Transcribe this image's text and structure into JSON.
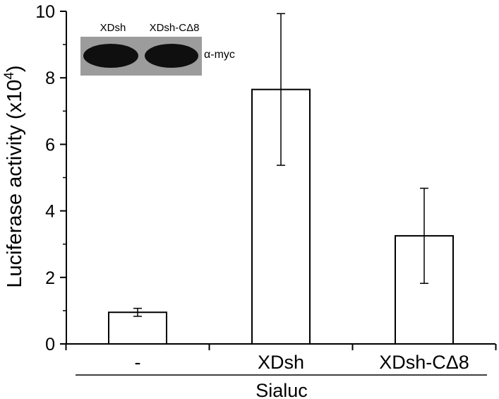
{
  "chart_data": {
    "type": "bar",
    "categories": [
      "-",
      "XDsh",
      "XDsh-CΔ8"
    ],
    "values": [
      0.95,
      7.65,
      3.25
    ],
    "error": [
      0.12,
      2.28,
      1.43
    ],
    "ylabel_main": "Luciferase activity (x10",
    "ylabel_exp": "4",
    "ylabel_close": ")",
    "group_label": "Sialuc",
    "ylim": [
      0,
      10
    ],
    "yticks": [
      0,
      2,
      4,
      6,
      8,
      10
    ],
    "grid": false,
    "bar_fill": "#ffffff",
    "bar_stroke": "#000000"
  },
  "inset": {
    "lanes": [
      "XDsh",
      "XDsh-CΔ8"
    ],
    "antibody": "α-myc"
  }
}
